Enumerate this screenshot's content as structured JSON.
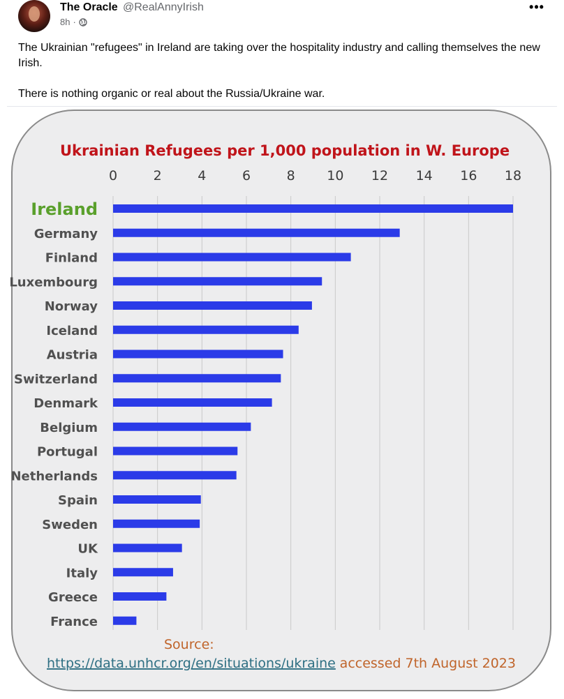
{
  "post": {
    "author_name": "The Oracle",
    "author_handle": "@RealAnnyIrish",
    "time": "8h",
    "separator": "·",
    "more_label": "•••",
    "paragraphs": [
      "The Ukrainian \"refugees\" in Ireland are taking over the hospitality industry and calling themselves the new Irish.",
      "There is nothing organic or real about the Russia/Ukraine war."
    ]
  },
  "chart_data": {
    "type": "bar",
    "orientation": "horizontal",
    "title": "Ukrainian Refugees per 1,000 population in W. Europe",
    "x_ticks": [
      "0",
      "2",
      "4",
      "6",
      "8",
      "10",
      "12",
      "14",
      "16",
      "18"
    ],
    "xlim": [
      0,
      18
    ],
    "grid": true,
    "highlight_category": "Ireland",
    "categories": [
      "Ireland",
      "Germany",
      "Finland",
      "Luxembourg",
      "Norway",
      "Iceland",
      "Austria",
      "Switzerland",
      "Denmark",
      "Belgium",
      "Portugal",
      "Netherlands",
      "Spain",
      "Sweden",
      "UK",
      "Italy",
      "Greece",
      "France"
    ],
    "values": [
      18.0,
      12.9,
      10.7,
      9.4,
      8.95,
      8.35,
      7.65,
      7.55,
      7.15,
      6.2,
      5.6,
      5.55,
      3.95,
      3.9,
      3.1,
      2.7,
      2.4,
      1.05
    ],
    "source_label": "Source:",
    "source_url": "https://data.unhcr.org/en/situations/ukraine",
    "accessed_text": "accessed  7th August 2023",
    "colors": {
      "bar": "#2b3be8",
      "highlight": "#5aa02c",
      "title": "#c0141a",
      "source": "#c0642a"
    }
  }
}
